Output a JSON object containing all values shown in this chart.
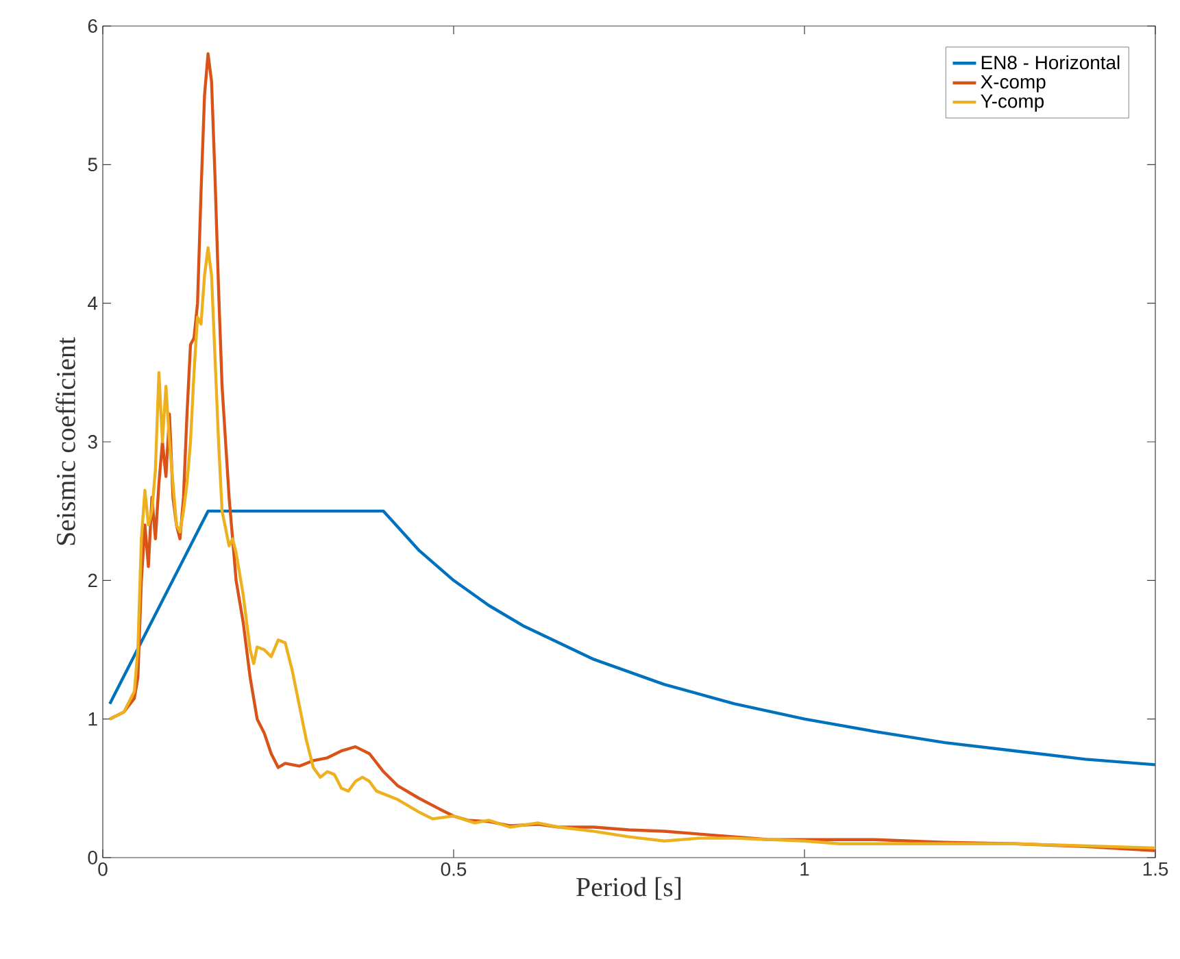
{
  "chart_data": {
    "type": "line",
    "xlabel": "Period [s]",
    "ylabel": "Seismic coefficient",
    "xlim": [
      0,
      1.5
    ],
    "ylim": [
      0,
      6
    ],
    "xticks": [
      0,
      0.5,
      1,
      1.5
    ],
    "yticks": [
      0,
      1,
      2,
      3,
      4,
      5,
      6
    ],
    "grid": false,
    "legend": "top right",
    "line_style": "solid",
    "marker": "none",
    "series": [
      {
        "name": "EN8 - Horizontal",
        "color": "#0072bd",
        "x": [
          0.01,
          0.15,
          0.4,
          0.45,
          0.5,
          0.55,
          0.6,
          0.7,
          0.8,
          0.9,
          1.0,
          1.1,
          1.2,
          1.3,
          1.4,
          1.5
        ],
        "values": [
          1.11,
          2.5,
          2.5,
          2.22,
          2.0,
          1.82,
          1.67,
          1.43,
          1.25,
          1.11,
          1.0,
          0.91,
          0.83,
          0.77,
          0.71,
          0.67
        ]
      },
      {
        "name": "X-comp",
        "color": "#d95319",
        "x": [
          0.01,
          0.03,
          0.045,
          0.05,
          0.055,
          0.06,
          0.065,
          0.07,
          0.075,
          0.08,
          0.085,
          0.09,
          0.095,
          0.1,
          0.105,
          0.11,
          0.115,
          0.12,
          0.125,
          0.13,
          0.135,
          0.14,
          0.145,
          0.15,
          0.155,
          0.16,
          0.165,
          0.17,
          0.18,
          0.19,
          0.2,
          0.21,
          0.22,
          0.23,
          0.24,
          0.25,
          0.26,
          0.28,
          0.3,
          0.32,
          0.34,
          0.36,
          0.38,
          0.4,
          0.42,
          0.45,
          0.48,
          0.5,
          0.52,
          0.55,
          0.58,
          0.62,
          0.65,
          0.7,
          0.75,
          0.8,
          0.85,
          0.9,
          0.95,
          1.0,
          1.1,
          1.2,
          1.3,
          1.4,
          1.5
        ],
        "values": [
          1.0,
          1.05,
          1.15,
          1.3,
          2.0,
          2.4,
          2.1,
          2.6,
          2.3,
          2.7,
          3.0,
          2.75,
          3.2,
          2.6,
          2.4,
          2.3,
          2.6,
          3.2,
          3.7,
          3.75,
          4.0,
          4.8,
          5.5,
          5.8,
          5.6,
          4.9,
          4.1,
          3.4,
          2.6,
          2.0,
          1.7,
          1.3,
          1.0,
          0.9,
          0.75,
          0.65,
          0.68,
          0.66,
          0.7,
          0.72,
          0.77,
          0.8,
          0.75,
          0.62,
          0.52,
          0.43,
          0.35,
          0.3,
          0.27,
          0.26,
          0.23,
          0.24,
          0.22,
          0.22,
          0.2,
          0.19,
          0.17,
          0.15,
          0.13,
          0.13,
          0.13,
          0.11,
          0.1,
          0.08,
          0.05
        ]
      },
      {
        "name": "Y-comp",
        "color": "#edb120",
        "x": [
          0.01,
          0.03,
          0.045,
          0.05,
          0.055,
          0.06,
          0.065,
          0.07,
          0.075,
          0.08,
          0.085,
          0.09,
          0.095,
          0.1,
          0.105,
          0.11,
          0.115,
          0.12,
          0.125,
          0.13,
          0.135,
          0.14,
          0.145,
          0.15,
          0.155,
          0.16,
          0.165,
          0.17,
          0.18,
          0.185,
          0.19,
          0.2,
          0.21,
          0.215,
          0.22,
          0.23,
          0.24,
          0.25,
          0.26,
          0.27,
          0.28,
          0.29,
          0.3,
          0.31,
          0.32,
          0.33,
          0.34,
          0.35,
          0.36,
          0.37,
          0.38,
          0.39,
          0.42,
          0.45,
          0.47,
          0.5,
          0.53,
          0.55,
          0.58,
          0.62,
          0.65,
          0.7,
          0.75,
          0.8,
          0.85,
          0.9,
          0.95,
          1.0,
          1.05,
          1.1,
          1.3,
          1.5
        ],
        "values": [
          1.0,
          1.05,
          1.2,
          1.5,
          2.3,
          2.65,
          2.4,
          2.5,
          2.8,
          3.5,
          3.0,
          3.4,
          3.0,
          2.7,
          2.4,
          2.35,
          2.5,
          2.7,
          3.0,
          3.5,
          3.9,
          3.85,
          4.2,
          4.4,
          4.2,
          3.6,
          3.0,
          2.5,
          2.25,
          2.3,
          2.2,
          1.9,
          1.5,
          1.4,
          1.52,
          1.5,
          1.45,
          1.57,
          1.55,
          1.35,
          1.1,
          0.85,
          0.65,
          0.58,
          0.62,
          0.6,
          0.5,
          0.48,
          0.55,
          0.58,
          0.55,
          0.48,
          0.42,
          0.33,
          0.28,
          0.3,
          0.25,
          0.27,
          0.22,
          0.25,
          0.22,
          0.19,
          0.15,
          0.12,
          0.14,
          0.14,
          0.13,
          0.12,
          0.1,
          0.1,
          0.1,
          0.07
        ]
      }
    ]
  }
}
